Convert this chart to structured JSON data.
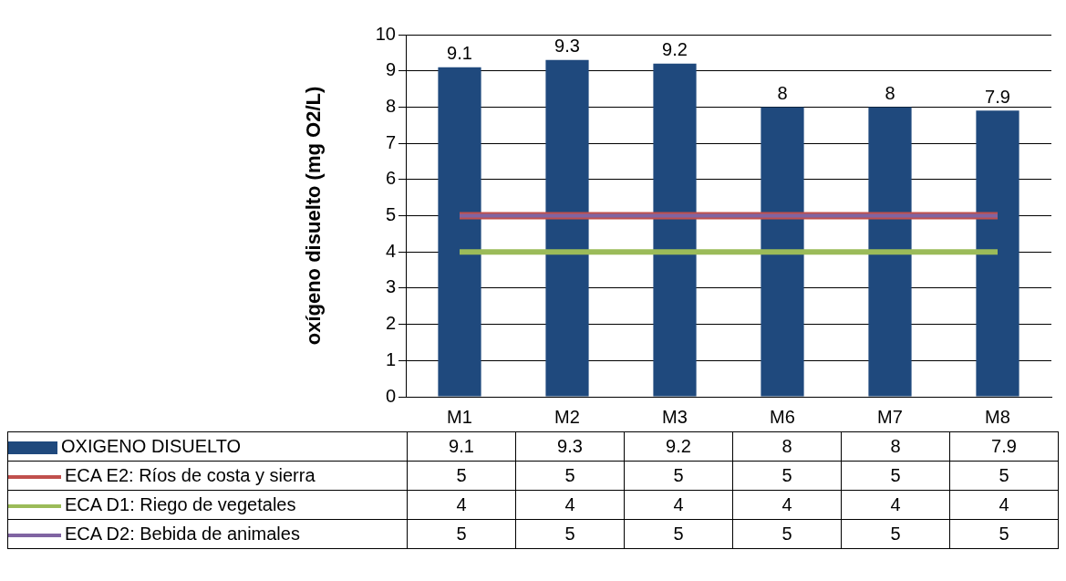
{
  "chart_data": {
    "type": "bar",
    "ylabel": "oxígeno disuelto (mg O2/L)",
    "categories": [
      "M1",
      "M2",
      "M3",
      "M6",
      "M7",
      "M8"
    ],
    "series": [
      {
        "name": "OXIGENO DISUELTO",
        "type": "bar",
        "color": "#1f497d",
        "values": [
          9.1,
          9.3,
          9.2,
          8,
          8,
          7.9
        ],
        "value_labels": [
          "9.1",
          "9.3",
          "9.2",
          "8",
          "8",
          "7.9"
        ]
      },
      {
        "name": "ECA  E2: Ríos de costa y sierra",
        "type": "line",
        "color": "#c0504d",
        "values": [
          5,
          5,
          5,
          5,
          5,
          5
        ]
      },
      {
        "name": "ECA D1: Riego de vegetales",
        "type": "line",
        "color": "#9bbb59",
        "values": [
          4,
          4,
          4,
          4,
          4,
          4
        ]
      },
      {
        "name": "ECA D2: Bebida de animales",
        "type": "line",
        "color": "#8064a2",
        "values": [
          5,
          5,
          5,
          5,
          5,
          5
        ]
      }
    ],
    "ylim": [
      0,
      10
    ],
    "yticks": [
      0,
      1,
      2,
      3,
      4,
      5,
      6,
      7,
      8,
      9,
      10
    ],
    "grid": "y",
    "legend": "bottom",
    "data_labels": true
  }
}
